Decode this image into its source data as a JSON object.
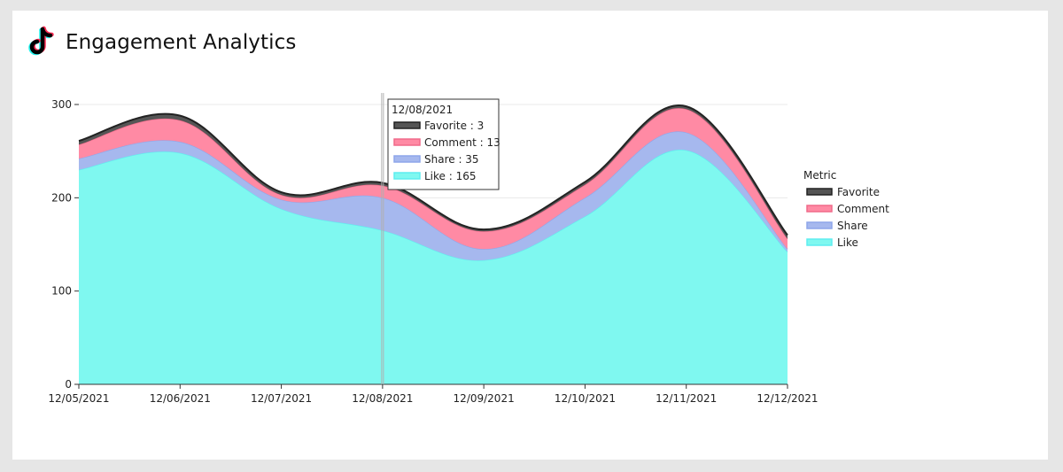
{
  "page": {
    "title": "Engagement Analytics",
    "logo_icon": "tiktok-logo-icon"
  },
  "chart_data": {
    "type": "area",
    "stacked": true,
    "smooth": true,
    "x": [
      "12/05/2021",
      "12/06/2021",
      "12/07/2021",
      "12/08/2021",
      "12/09/2021",
      "12/10/2021",
      "12/11/2021",
      "12/12/2021"
    ],
    "ylim": [
      0,
      320
    ],
    "yticks": [
      0,
      100,
      200,
      300
    ],
    "grid": "horizontal",
    "legend": {
      "title": "Metric",
      "placement": "right"
    },
    "series": [
      {
        "name": "Like",
        "color": "#7ff8f0",
        "line": "#5eeef0",
        "values": [
          230,
          248,
          188,
          165,
          133,
          180,
          251,
          142
        ]
      },
      {
        "name": "Share",
        "color": "#a6b8ee",
        "line": "#8ea6ea",
        "values": [
          12,
          12,
          10,
          35,
          12,
          20,
          19,
          3
        ]
      },
      {
        "name": "Comment",
        "color": "#ff8aa4",
        "line": "#f06a8a",
        "values": [
          15,
          23,
          5,
          13,
          19,
          14,
          25,
          11
        ]
      },
      {
        "name": "Favorite",
        "color": "#555555",
        "line": "#222222",
        "values": [
          4,
          5,
          3,
          3,
          2,
          3,
          3,
          4
        ]
      }
    ],
    "tooltip": {
      "x": "12/08/2021",
      "index": 3,
      "rows": [
        {
          "label": "Favorite : 3",
          "color": "#555555",
          "line": "#222222"
        },
        {
          "label": "Comment : 13",
          "color": "#ff8aa4",
          "line": "#f06a8a"
        },
        {
          "label": "Share : 35",
          "color": "#a6b8ee",
          "line": "#8ea6ea"
        },
        {
          "label": "Like : 165",
          "color": "#7ff8f0",
          "line": "#5eeef0"
        }
      ]
    }
  }
}
